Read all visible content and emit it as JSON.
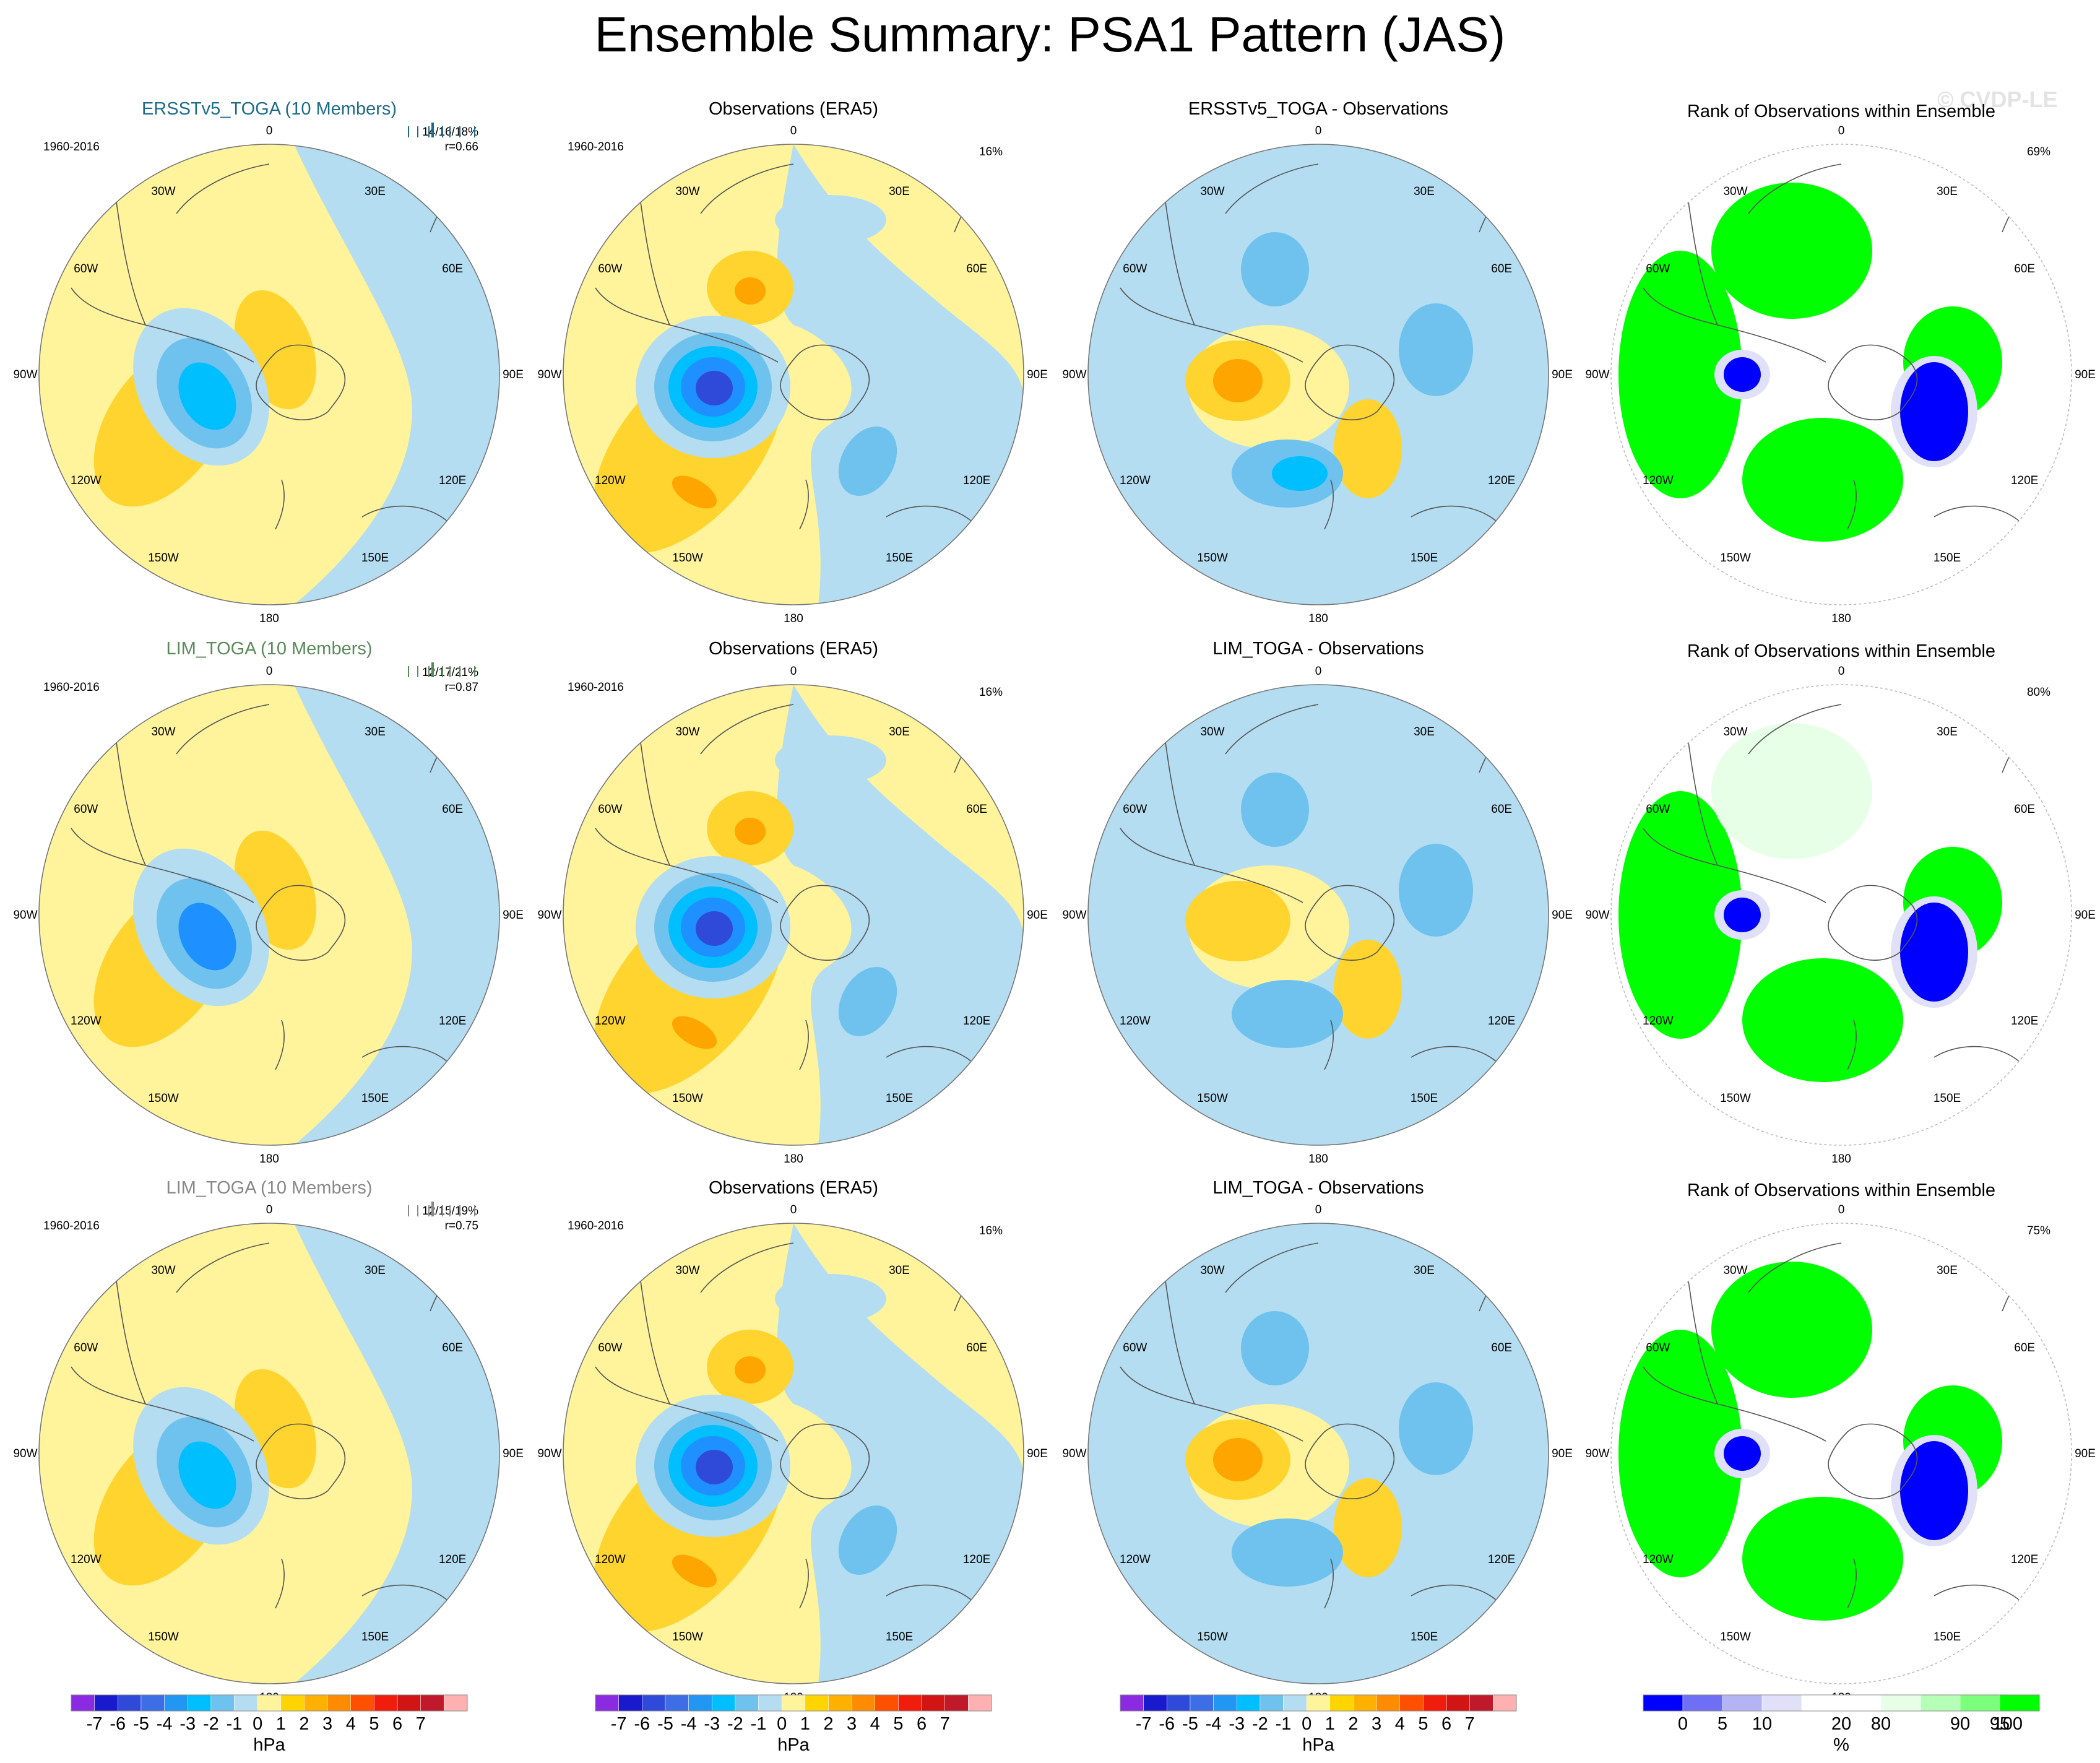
{
  "title": "Ensemble Summary: PSA1 Pattern (JAS)",
  "watermark": "© CVDP-LE",
  "longitude_labels": [
    "0",
    "30E",
    "60E",
    "90E",
    "120E",
    "150E",
    "180",
    "150W",
    "120W",
    "90W",
    "60W",
    "30W"
  ],
  "rows": [
    {
      "model_title": "ERSSTv5_TOGA",
      "members_label": "(10 Members)",
      "title_color": "#1f6b87",
      "period": "1960-2016",
      "pct_stats": "14/16/18%",
      "corr": "r=0.66",
      "obs_title": "Observations (ERA5)",
      "obs_period": "1960-2016",
      "obs_pct": "16%",
      "diff_title": "ERSSTv5_TOGA - Observations",
      "rank_title": "Rank of Observations within Ensemble",
      "rank_pct": "69%"
    },
    {
      "model_title": "LIM_TOGA",
      "members_label": "(10 Members)",
      "title_color": "#5a8a5a",
      "period": "1960-2016",
      "pct_stats": "12/17/21%",
      "corr": "r=0.87",
      "obs_title": "Observations (ERA5)",
      "obs_period": "1960-2016",
      "obs_pct": "16%",
      "diff_title": "LIM_TOGA - Observations",
      "rank_title": "Rank of Observations within Ensemble",
      "rank_pct": "80%"
    },
    {
      "model_title": "LIM_TOGA",
      "members_label": "(10 Members)",
      "title_color": "#888888",
      "period": "1960-2016",
      "pct_stats": "12/15/19%",
      "corr": "r=0.75",
      "obs_title": "Observations (ERA5)",
      "obs_period": "1960-2016",
      "obs_pct": "16%",
      "diff_title": "LIM_TOGA - Observations",
      "rank_title": "Rank of Observations within Ensemble",
      "rank_pct": "75%"
    }
  ],
  "colorbar_hpa": {
    "unit": "hPa",
    "tick_labels": [
      "-7",
      "-6",
      "-5",
      "-4",
      "-3",
      "-2",
      "-1",
      "0",
      "1",
      "2",
      "3",
      "4",
      "5",
      "6",
      "7"
    ],
    "colors": [
      "#8a2be2",
      "#1a1acd",
      "#2f4ad9",
      "#3d6ee6",
      "#2196f3",
      "#00bfff",
      "#6fc2ee",
      "#b4ddf1",
      "#fff39c",
      "#ffd400",
      "#ffb000",
      "#ff8c00",
      "#ff5000",
      "#f01c0c",
      "#d11414",
      "#c01a2a",
      "#ffb0b0"
    ]
  },
  "colorbar_rank": {
    "unit": "%",
    "tick_labels": [
      "0",
      "5",
      "10",
      "20",
      "80",
      "90",
      "95",
      "100"
    ],
    "colors": [
      "#0000ff",
      "#6f6ff5",
      "#b4b4f4",
      "#e0e0f8",
      "#ffffff",
      "#ffffff",
      "#e6ffe6",
      "#b6ffb6",
      "#7cff7c",
      "#00ff00"
    ]
  },
  "colors": {
    "pos1": "#fff39c",
    "pos2": "#ffd42e",
    "pos3": "#ffa500",
    "pos4": "#ff7b1a",
    "neg1": "#b4ddf1",
    "neg2": "#6fc2ee",
    "neg3": "#00bfff",
    "neg4": "#1e90ff",
    "neg5": "#2f4ad9",
    "rank_high": "#00ff00",
    "rank_low": "#0000ff",
    "rank_light_green": "#e6ffe6",
    "rank_light_blue": "#e0e0f8"
  }
}
